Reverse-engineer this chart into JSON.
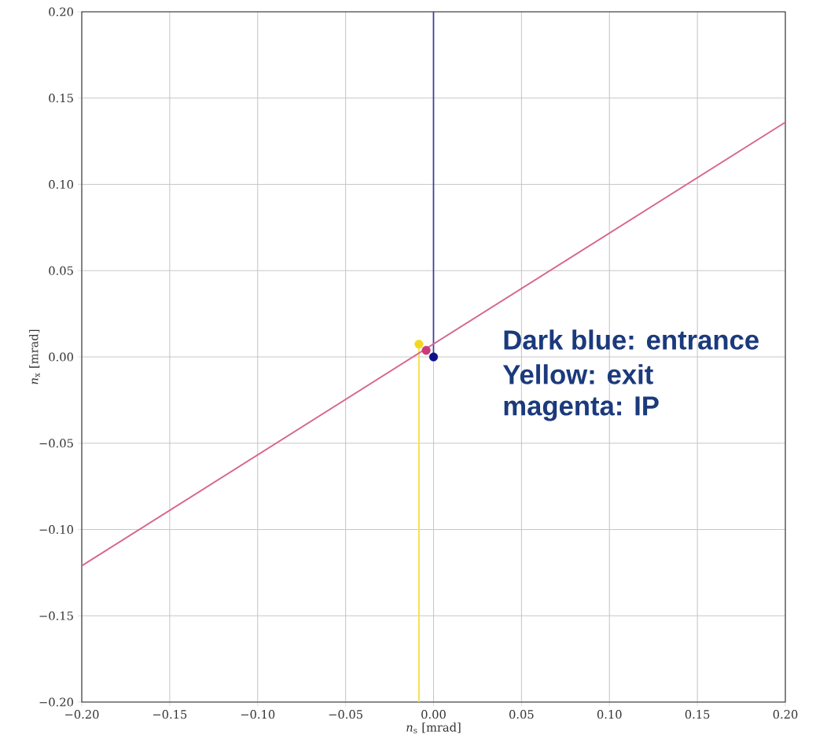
{
  "chart_data": {
    "type": "line",
    "xlabel": "*n*$_{s}$ [mrad]",
    "ylabel": "*n*$_{x}$ [mrad]",
    "xlim": [
      -0.2,
      0.2
    ],
    "ylim": [
      -0.2,
      0.2
    ],
    "xticks": [
      {
        "value": -0.2,
        "label": "−0.20"
      },
      {
        "value": -0.15,
        "label": "−0.15"
      },
      {
        "value": -0.1,
        "label": "−0.10"
      },
      {
        "value": -0.05,
        "label": "−0.05"
      },
      {
        "value": 0,
        "label": "0.00"
      },
      {
        "value": 0.05,
        "label": "0.05"
      },
      {
        "value": 0.1,
        "label": "0.10"
      },
      {
        "value": 0.15,
        "label": "0.15"
      },
      {
        "value": 0.2,
        "label": "0.20"
      }
    ],
    "yticks": [
      {
        "value": -0.2,
        "label": "−0.20"
      },
      {
        "value": -0.15,
        "label": "−0.15"
      },
      {
        "value": -0.1,
        "label": "−0.10"
      },
      {
        "value": -0.05,
        "label": "−0.05"
      },
      {
        "value": 0,
        "label": "0.00"
      },
      {
        "value": 0.05,
        "label": "0.05"
      },
      {
        "value": 0.1,
        "label": "0.10"
      },
      {
        "value": 0.15,
        "label": "0.15"
      },
      {
        "value": 0.2,
        "label": "0.20"
      }
    ],
    "grid": true,
    "series": [
      {
        "color": "#3c3c9e",
        "x": [
          0,
          0
        ],
        "values": [
          0,
          0.2
        ]
      },
      {
        "color": "#f4e04c",
        "x": [
          -0.0083,
          -0.0083
        ],
        "values": [
          0.0074,
          -0.2
        ]
      },
      {
        "color": "#d6648e",
        "x": [
          -0.2,
          0.2
        ],
        "values": [
          -0.121,
          0.136
        ]
      },
      {
        "type": "scatter",
        "color": "#10108a",
        "x": [
          0
        ],
        "values": [
          0
        ]
      },
      {
        "type": "scatter",
        "color": "#f2d81e",
        "x": [
          -0.0083
        ],
        "values": [
          0.0074
        ]
      },
      {
        "type": "scatter",
        "color": "#c83c78",
        "x": [
          -0.0042
        ],
        "values": [
          0.0038
        ]
      }
    ],
    "annotations": [
      "Dark blue: entrance",
      "Yellow: exit",
      "magenta: IP"
    ]
  }
}
